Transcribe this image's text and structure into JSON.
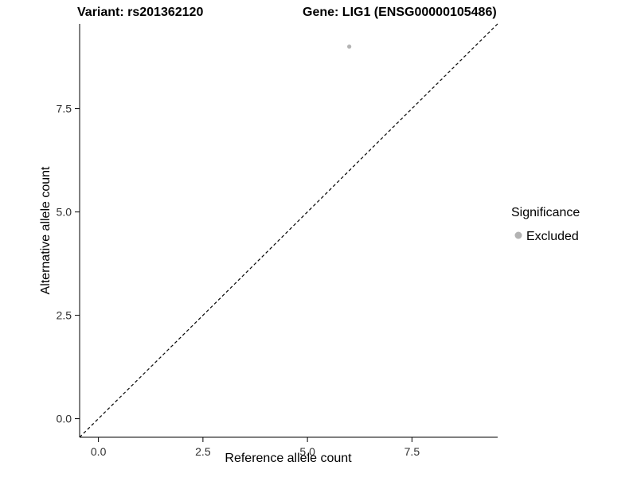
{
  "titles": {
    "left": "Variant: rs201362120",
    "right": "Gene: LIG1 (ENSG00000105486)"
  },
  "chart_data": {
    "type": "scatter",
    "title_left": "Variant: rs201362120",
    "title_right": "Gene: LIG1 (ENSG00000105486)",
    "xlabel": "Reference allele count",
    "ylabel": "Alternative allele count",
    "xlim": [
      -0.45,
      9.55
    ],
    "ylim": [
      -0.45,
      9.55
    ],
    "xticks": [
      0.0,
      2.5,
      5.0,
      7.5
    ],
    "yticks": [
      0.0,
      2.5,
      5.0,
      7.5
    ],
    "tick_decimals": 1,
    "grid": false,
    "reference_line": {
      "kind": "identity",
      "style": "dashed",
      "color": "#000000"
    },
    "series": [
      {
        "name": "Excluded",
        "color": "#b3b3b3",
        "points": [
          {
            "x": 6.0,
            "y": 9.0
          }
        ]
      }
    ],
    "legend": {
      "title": "Significance",
      "position": "right",
      "items": [
        {
          "label": "Excluded",
          "color": "#b3b3b3"
        }
      ]
    }
  }
}
